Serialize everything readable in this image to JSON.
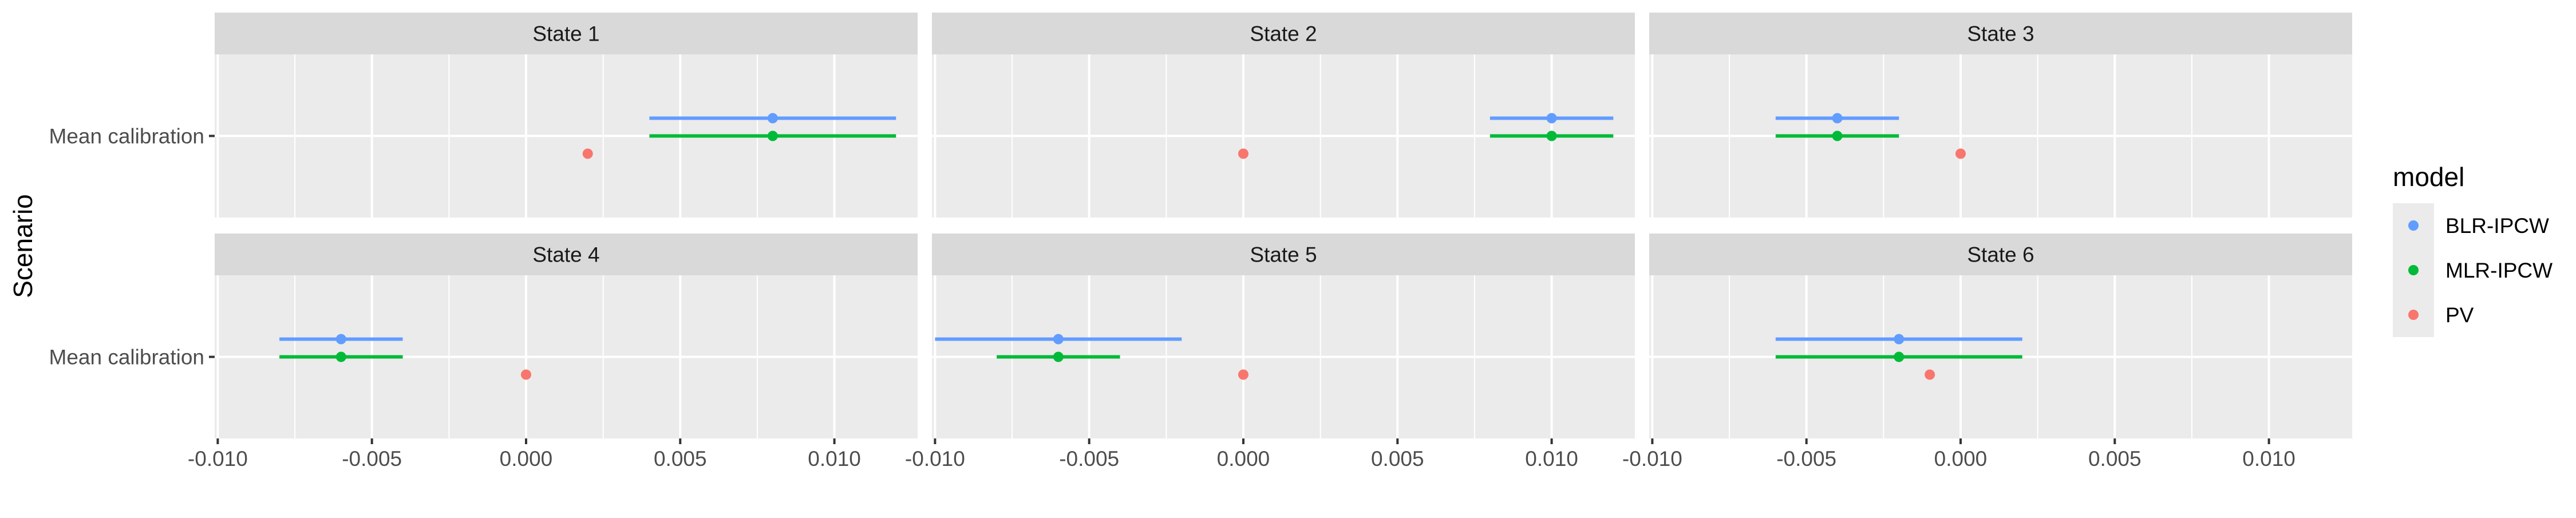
{
  "chart_data": {
    "type": "scatter",
    "subtype": "pointrange-faceted",
    "ylabel": "Scenario",
    "xlabel": "",
    "category": "Mean calibration",
    "xlim": [
      -0.0101,
      0.0127
    ],
    "xticks": [
      -0.01,
      -0.005,
      0.0,
      0.005,
      0.01
    ],
    "xtick_labels": [
      "-0.010",
      "-0.005",
      "0.000",
      "0.005",
      "0.010"
    ],
    "grid": true,
    "legend": {
      "title": "model",
      "position": "right",
      "entries": [
        {
          "name": "BLR-IPCW",
          "color": "#619CFF"
        },
        {
          "name": "MLR-IPCW",
          "color": "#00BA38"
        },
        {
          "name": "PV",
          "color": "#F8766D"
        }
      ]
    },
    "facets": [
      {
        "label": "State 1",
        "points": [
          {
            "model": "BLR-IPCW",
            "estimate": 0.008,
            "lower": 0.004,
            "upper": 0.012
          },
          {
            "model": "MLR-IPCW",
            "estimate": 0.008,
            "lower": 0.004,
            "upper": 0.012
          },
          {
            "model": "PV",
            "estimate": 0.002
          }
        ]
      },
      {
        "label": "State 2",
        "points": [
          {
            "model": "BLR-IPCW",
            "estimate": 0.01,
            "lower": 0.008,
            "upper": 0.012
          },
          {
            "model": "MLR-IPCW",
            "estimate": 0.01,
            "lower": 0.008,
            "upper": 0.012
          },
          {
            "model": "PV",
            "estimate": 0.0
          }
        ]
      },
      {
        "label": "State 3",
        "points": [
          {
            "model": "BLR-IPCW",
            "estimate": -0.004,
            "lower": -0.006,
            "upper": -0.002
          },
          {
            "model": "MLR-IPCW",
            "estimate": -0.004,
            "lower": -0.006,
            "upper": -0.002
          },
          {
            "model": "PV",
            "estimate": 0.0
          }
        ]
      },
      {
        "label": "State 4",
        "points": [
          {
            "model": "BLR-IPCW",
            "estimate": -0.006,
            "lower": -0.008,
            "upper": -0.004
          },
          {
            "model": "MLR-IPCW",
            "estimate": -0.006,
            "lower": -0.008,
            "upper": -0.004
          },
          {
            "model": "PV",
            "estimate": 0.0
          }
        ]
      },
      {
        "label": "State 5",
        "points": [
          {
            "model": "BLR-IPCW",
            "estimate": -0.006,
            "lower": -0.01,
            "upper": -0.002
          },
          {
            "model": "MLR-IPCW",
            "estimate": -0.006,
            "lower": -0.008,
            "upper": -0.004
          },
          {
            "model": "PV",
            "estimate": 0.0
          }
        ]
      },
      {
        "label": "State 6",
        "points": [
          {
            "model": "BLR-IPCW",
            "estimate": -0.002,
            "lower": -0.006,
            "upper": 0.002
          },
          {
            "model": "MLR-IPCW",
            "estimate": -0.002,
            "lower": -0.006,
            "upper": 0.002
          },
          {
            "model": "PV",
            "estimate": -0.001
          }
        ]
      }
    ]
  }
}
